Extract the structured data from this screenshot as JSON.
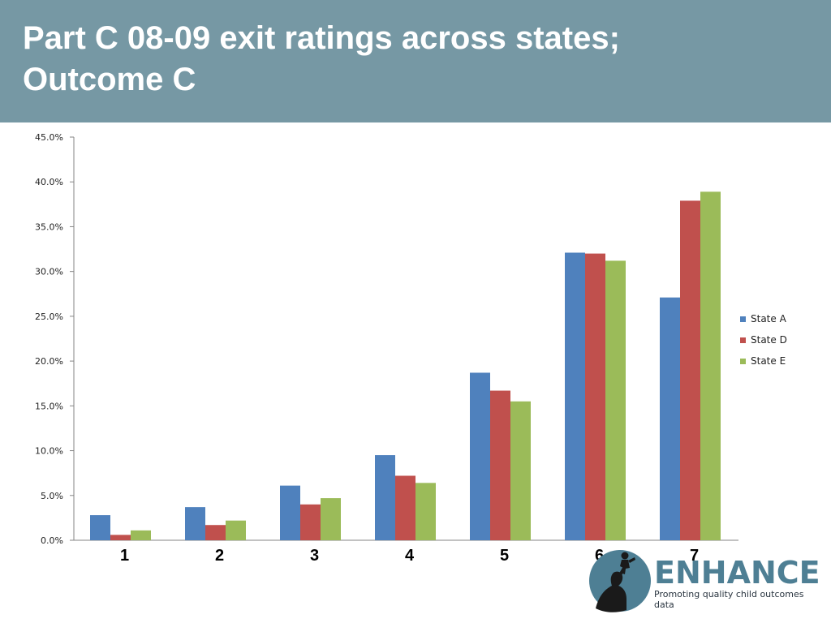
{
  "slide": {
    "title_line1": "Part C 08-09 exit ratings across states;",
    "title_line2": "Outcome C",
    "header_color": "#7698a4"
  },
  "chart_data": {
    "type": "bar",
    "categories": [
      "1",
      "2",
      "3",
      "4",
      "5",
      "6",
      "7"
    ],
    "series": [
      {
        "name": "State A",
        "color": "#4f81bd",
        "values": [
          2.8,
          3.7,
          6.1,
          9.5,
          18.7,
          32.1,
          27.1
        ]
      },
      {
        "name": "State D",
        "color": "#c0504d",
        "values": [
          0.6,
          1.7,
          4.0,
          7.2,
          16.7,
          32.0,
          37.9
        ]
      },
      {
        "name": "State E",
        "color": "#9bbb59",
        "values": [
          1.1,
          2.2,
          4.7,
          6.4,
          15.5,
          31.2,
          38.9
        ]
      }
    ],
    "ylim": [
      0,
      45
    ],
    "yticks": [
      0,
      5,
      10,
      15,
      20,
      25,
      30,
      35,
      40,
      45
    ],
    "ytick_labels": [
      "0.0%",
      "5.0%",
      "10.0%",
      "15.0%",
      "20.0%",
      "25.0%",
      "30.0%",
      "35.0%",
      "40.0%",
      "45.0%"
    ],
    "title": "",
    "xlabel": "",
    "ylabel": "",
    "grid": false,
    "legend_position": "right"
  },
  "logo": {
    "name": "ENHANCE",
    "tagline": "Promoting quality child outcomes data"
  }
}
